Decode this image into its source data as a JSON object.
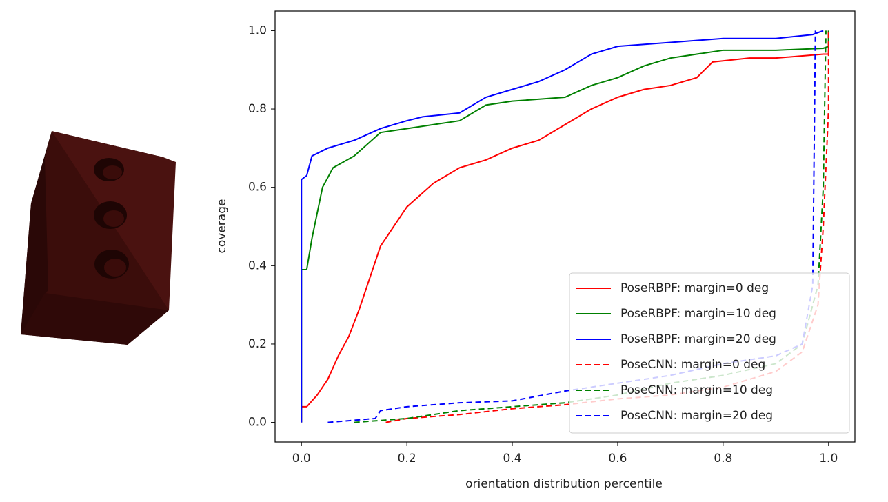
{
  "chart_data": {
    "type": "line",
    "xlabel": "orientation distribution percentile",
    "ylabel": "coverage",
    "xlim": [
      -0.05,
      1.05
    ],
    "ylim": [
      -0.05,
      1.05
    ],
    "xticks": [
      {
        "value": 0,
        "label": "0.0"
      },
      {
        "value": 0.2,
        "label": "0.2"
      },
      {
        "value": 0.4,
        "label": "0.4"
      },
      {
        "value": 0.6,
        "label": "0.6"
      },
      {
        "value": 0.8,
        "label": "0.8"
      },
      {
        "value": 1,
        "label": "1.0"
      }
    ],
    "yticks": [
      {
        "value": 0,
        "label": "0.0"
      },
      {
        "value": 0.2,
        "label": "0.2"
      },
      {
        "value": 0.4,
        "label": "0.4"
      },
      {
        "value": 0.6,
        "label": "0.6"
      },
      {
        "value": 0.8,
        "label": "0.8"
      },
      {
        "value": 1,
        "label": "1.0"
      }
    ],
    "legend": "lower right",
    "series": [
      {
        "name": "PoseRBPF: margin=0 deg",
        "color": "#ff0000",
        "linestyle": "solid",
        "x": [
          0,
          0,
          0.01,
          0.03,
          0.05,
          0.07,
          0.09,
          0.11,
          0.13,
          0.15,
          0.17,
          0.2,
          0.25,
          0.3,
          0.35,
          0.4,
          0.45,
          0.5,
          0.55,
          0.6,
          0.65,
          0.7,
          0.75,
          0.78,
          0.85,
          0.9,
          0.99,
          1.0,
          1.0
        ],
        "values": [
          0,
          0.04,
          0.04,
          0.07,
          0.11,
          0.17,
          0.22,
          0.29,
          0.37,
          0.45,
          0.49,
          0.55,
          0.61,
          0.65,
          0.67,
          0.7,
          0.72,
          0.76,
          0.8,
          0.83,
          0.85,
          0.86,
          0.88,
          0.92,
          0.93,
          0.93,
          0.94,
          0.94,
          1.0
        ]
      },
      {
        "name": "PoseRBPF: margin=10 deg",
        "color": "#008000",
        "linestyle": "solid",
        "x": [
          0,
          0,
          0.01,
          0.02,
          0.04,
          0.06,
          0.1,
          0.15,
          0.2,
          0.3,
          0.35,
          0.4,
          0.5,
          0.55,
          0.6,
          0.65,
          0.7,
          0.8,
          0.9,
          0.99,
          1.0,
          1.0
        ],
        "values": [
          0,
          0.39,
          0.39,
          0.47,
          0.6,
          0.65,
          0.68,
          0.74,
          0.75,
          0.77,
          0.81,
          0.82,
          0.83,
          0.86,
          0.88,
          0.91,
          0.93,
          0.95,
          0.95,
          0.955,
          0.96,
          1.0
        ]
      },
      {
        "name": "PoseRBPF: margin=20 deg",
        "color": "#0000ff",
        "linestyle": "solid",
        "x": [
          0,
          0,
          0.01,
          0.02,
          0.05,
          0.1,
          0.15,
          0.2,
          0.23,
          0.3,
          0.35,
          0.4,
          0.45,
          0.5,
          0.55,
          0.6,
          0.7,
          0.8,
          0.9,
          0.97,
          0.99
        ],
        "values": [
          0,
          0.62,
          0.63,
          0.68,
          0.7,
          0.72,
          0.75,
          0.77,
          0.78,
          0.79,
          0.83,
          0.85,
          0.87,
          0.9,
          0.94,
          0.96,
          0.97,
          0.98,
          0.98,
          0.99,
          1.0
        ]
      },
      {
        "name": "PoseCNN: margin=0 deg",
        "color": "#ff0000",
        "linestyle": "dashed",
        "x": [
          0.16,
          0.2,
          0.3,
          0.4,
          0.5,
          0.6,
          0.7,
          0.8,
          0.9,
          0.95,
          0.98,
          0.99,
          1.0,
          1.0
        ],
        "values": [
          0,
          0.01,
          0.02,
          0.035,
          0.045,
          0.06,
          0.07,
          0.09,
          0.13,
          0.18,
          0.3,
          0.5,
          0.8,
          1.0
        ]
      },
      {
        "name": "PoseCNN: margin=10 deg",
        "color": "#008000",
        "linestyle": "dashed",
        "x": [
          0.1,
          0.2,
          0.3,
          0.4,
          0.5,
          0.6,
          0.7,
          0.8,
          0.9,
          0.95,
          0.98,
          0.99,
          0.995
        ],
        "values": [
          0,
          0.01,
          0.03,
          0.04,
          0.05,
          0.07,
          0.1,
          0.12,
          0.15,
          0.2,
          0.35,
          0.6,
          1.0
        ]
      },
      {
        "name": "PoseCNN: margin=20 deg",
        "color": "#0000ff",
        "linestyle": "dashed",
        "x": [
          0.05,
          0.14,
          0.15,
          0.2,
          0.3,
          0.4,
          0.5,
          0.6,
          0.7,
          0.8,
          0.9,
          0.95,
          0.97,
          0.975
        ],
        "values": [
          0,
          0.01,
          0.03,
          0.04,
          0.05,
          0.055,
          0.08,
          0.1,
          0.12,
          0.15,
          0.17,
          0.2,
          0.35,
          1.0
        ]
      }
    ]
  }
}
